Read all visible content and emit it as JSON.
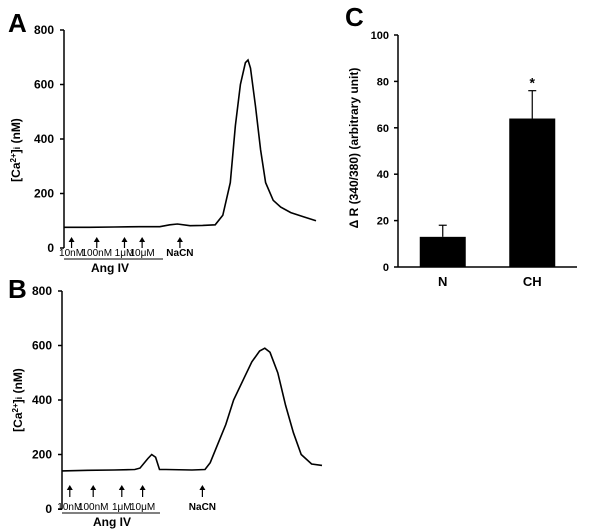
{
  "panels": {
    "a": {
      "letter": "A"
    },
    "b": {
      "letter": "B"
    },
    "c": {
      "letter": "C"
    }
  },
  "chart_data": [
    {
      "id": "a",
      "type": "line",
      "ylabel": "[Ca2+]i (nM)",
      "ylim": [
        0,
        800
      ],
      "yticks": [
        "0",
        "200",
        "400",
        "600",
        "800"
      ],
      "xlim": [
        0,
        100
      ],
      "grid": false,
      "trace": {
        "x": [
          0,
          10,
          20,
          30,
          38,
          42,
          45,
          50,
          55,
          60,
          63,
          66,
          68,
          70,
          71,
          72,
          73,
          74,
          76,
          78,
          80,
          83,
          86,
          90,
          95,
          100
        ],
        "y": [
          76,
          76,
          77,
          78,
          78,
          85,
          88,
          82,
          83,
          85,
          120,
          240,
          450,
          600,
          640,
          680,
          690,
          660,
          520,
          360,
          240,
          175,
          150,
          130,
          115,
          100
        ]
      },
      "markers": [
        {
          "label": "10nM",
          "x": 3
        },
        {
          "label": "100nM",
          "x": 13
        },
        {
          "label": "1μM",
          "x": 24
        },
        {
          "label": "10μM",
          "x": 31
        },
        {
          "label": "NaCN",
          "x": 46
        }
      ],
      "bracket_label": "Ang IV"
    },
    {
      "id": "b",
      "type": "line",
      "ylabel": "[Ca2+]i (nM)",
      "ylim": [
        0,
        800
      ],
      "yticks": [
        "0",
        "200",
        "400",
        "600",
        "800"
      ],
      "xlim": [
        0,
        100
      ],
      "grid": false,
      "trace": {
        "x": [
          0,
          10,
          20,
          28,
          30,
          33,
          34.5,
          36,
          37.5,
          40,
          50,
          55,
          57,
          60,
          63,
          66,
          70,
          73,
          76,
          78,
          80,
          83,
          86,
          89,
          92,
          96,
          100
        ],
        "y": [
          140,
          142,
          143,
          145,
          150,
          185,
          200,
          190,
          145,
          145,
          143,
          145,
          170,
          240,
          310,
          400,
          480,
          540,
          580,
          590,
          575,
          500,
          380,
          280,
          200,
          165,
          160
        ]
      },
      "markers": [
        {
          "label": "10nM",
          "x": 3
        },
        {
          "label": "100nM",
          "x": 12
        },
        {
          "label": "1μM",
          "x": 23
        },
        {
          "label": "10μM",
          "x": 31
        },
        {
          "label": "NaCN",
          "x": 54
        }
      ],
      "bracket_label": "Ang IV"
    },
    {
      "id": "c",
      "type": "bar",
      "ylabel": "Δ R (340/380) (arbitrary unit)",
      "ylim": [
        0,
        100
      ],
      "yticks": [
        "0",
        "20",
        "40",
        "60",
        "80",
        "100"
      ],
      "categories": [
        "N",
        "CH"
      ],
      "values": [
        13,
        64
      ],
      "errors": [
        5,
        12
      ],
      "annotations": [
        "",
        "*"
      ],
      "colors": {
        "bar": "#000000"
      },
      "grid": false
    }
  ]
}
